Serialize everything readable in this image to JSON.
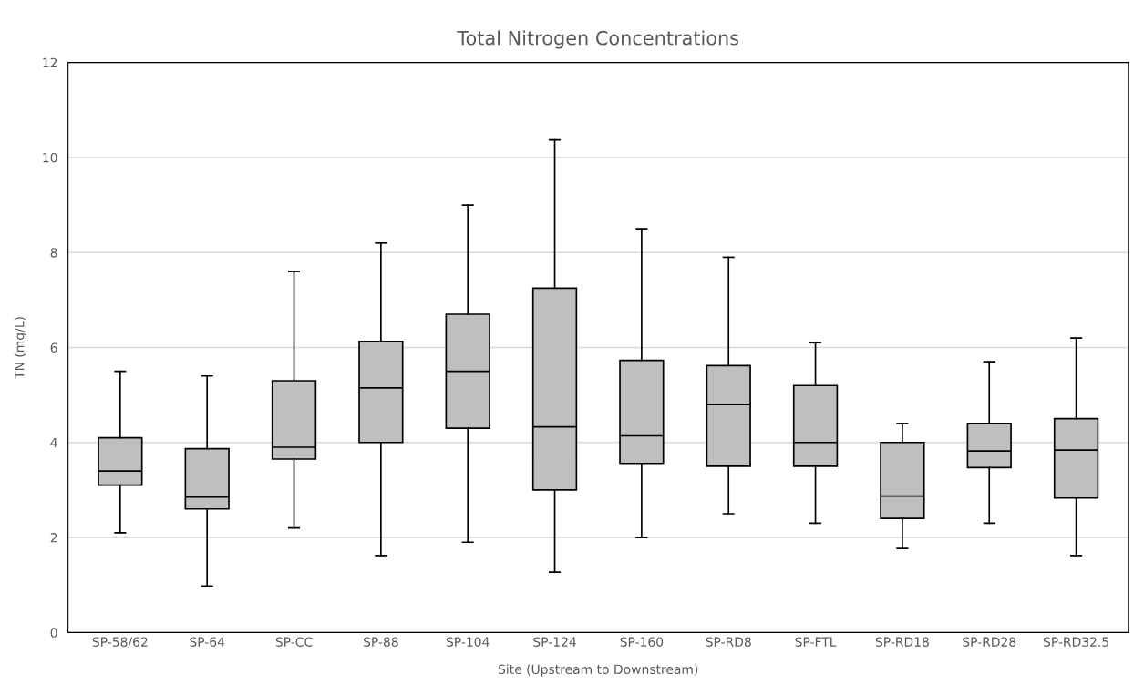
{
  "chart_data": {
    "type": "box",
    "title": "Total Nitrogen Concentrations",
    "xlabel": "Site (Upstream to Downstream)",
    "ylabel": "TN (mg/L)",
    "categories": [
      "SP-58/62",
      "SP-64",
      "SP-CC",
      "SP-88",
      "SP-104",
      "SP-124",
      "SP-160",
      "SP-RD8",
      "SP-FTL",
      "SP-RD18",
      "SP-RD28",
      "SP-RD32.5"
    ],
    "color": "#bfbfbf",
    "boxes": [
      {
        "low": 2.1,
        "q1": 3.1,
        "median": 3.4,
        "q3": 4.1,
        "high": 5.5
      },
      {
        "low": 0.98,
        "q1": 2.6,
        "median": 2.85,
        "q3": 3.87,
        "high": 5.4
      },
      {
        "low": 2.2,
        "q1": 3.65,
        "median": 3.9,
        "q3": 5.3,
        "high": 7.6
      },
      {
        "low": 1.62,
        "q1": 4.0,
        "median": 5.15,
        "q3": 6.13,
        "high": 8.2
      },
      {
        "low": 1.9,
        "q1": 4.3,
        "median": 5.5,
        "q3": 6.7,
        "high": 9.0
      },
      {
        "low": 1.27,
        "q1": 3.0,
        "median": 4.33,
        "q3": 7.25,
        "high": 10.37
      },
      {
        "low": 2.0,
        "q1": 3.56,
        "median": 4.14,
        "q3": 5.73,
        "high": 8.5
      },
      {
        "low": 2.5,
        "q1": 3.5,
        "median": 4.8,
        "q3": 5.62,
        "high": 7.9
      },
      {
        "low": 2.3,
        "q1": 3.5,
        "median": 4.0,
        "q3": 5.2,
        "high": 6.1
      },
      {
        "low": 1.77,
        "q1": 2.4,
        "median": 2.87,
        "q3": 4.0,
        "high": 4.4
      },
      {
        "low": 2.3,
        "q1": 3.47,
        "median": 3.82,
        "q3": 4.4,
        "high": 5.7
      },
      {
        "low": 1.62,
        "q1": 2.83,
        "median": 3.84,
        "q3": 4.5,
        "high": 6.2
      }
    ],
    "ylim": [
      0,
      12
    ],
    "yticks": [
      0,
      2,
      4,
      6,
      8,
      10,
      12
    ],
    "grid": "y"
  }
}
